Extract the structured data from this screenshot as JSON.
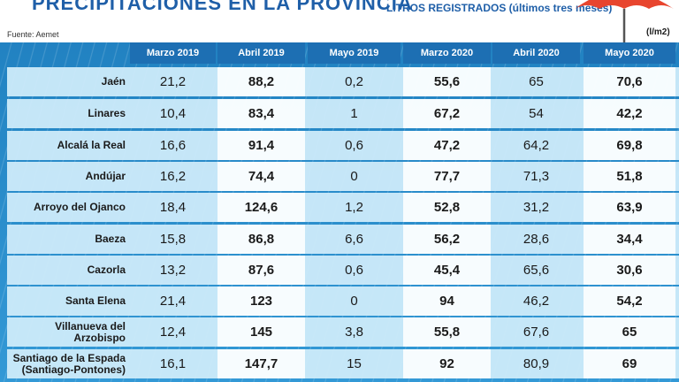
{
  "header": {
    "title": "PRECIPITACIONES EN LA PROVINCIA",
    "subtitle": "LITROS REGISTRADOS (últimos tres meses)",
    "source": "Fuente: Aemet",
    "unit": "(l/m2)"
  },
  "table": {
    "columns": [
      "Marzo 2019",
      "Abril 2019",
      "Mayo 2019",
      "Marzo 2020",
      "Abril 2020",
      "Mayo 2020"
    ],
    "rows": [
      {
        "name": "Jaén",
        "values": [
          "21,2",
          "88,2",
          "0,2",
          "55,6",
          "65",
          "70,6"
        ]
      },
      {
        "name": "Linares",
        "values": [
          "10,4",
          "83,4",
          "1",
          "67,2",
          "54",
          "42,2"
        ]
      },
      {
        "name": "Alcalá la Real",
        "values": [
          "16,6",
          "91,4",
          "0,6",
          "47,2",
          "64,2",
          "69,8"
        ]
      },
      {
        "name": "Andújar",
        "values": [
          "16,2",
          "74,4",
          "0",
          "77,7",
          "71,3",
          "51,8"
        ]
      },
      {
        "name": "Arroyo del Ojanco",
        "values": [
          "18,4",
          "124,6",
          "1,2",
          "52,8",
          "31,2",
          "63,9"
        ]
      },
      {
        "name": "Baeza",
        "values": [
          "15,8",
          "86,8",
          "6,6",
          "56,2",
          "28,6",
          "34,4"
        ]
      },
      {
        "name": "Cazorla",
        "values": [
          "13,2",
          "87,6",
          "0,6",
          "45,4",
          "65,6",
          "30,6"
        ]
      },
      {
        "name": "Santa Elena",
        "values": [
          "21,4",
          "123",
          "0",
          "94",
          "46,2",
          "54,2"
        ]
      },
      {
        "name": "Villanueva del Arzobispo",
        "values": [
          "12,4",
          "145",
          "3,8",
          "55,8",
          "67,6",
          "65"
        ]
      },
      {
        "name": "Santiago de la Espada\n(Santiago-Pontones)",
        "values": [
          "16,1",
          "147,7",
          "15",
          "92",
          "80,9",
          "69"
        ]
      }
    ]
  },
  "colors": {
    "header_blue": "#1d6fb3",
    "row_bg": "#cdebfa",
    "title": "#1f5fa8"
  }
}
